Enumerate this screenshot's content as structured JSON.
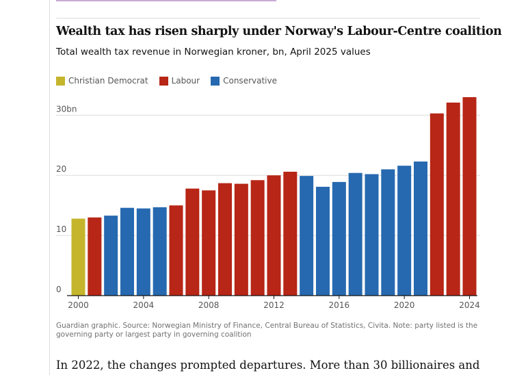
{
  "chart_data": {
    "type": "bar",
    "title": "Wealth tax has risen sharply under Norway's Labour-Centre coalition",
    "subtitle": "Total wealth tax revenue in Norwegian kroner, bn, April 2025 values",
    "legend": [
      {
        "name": "Christian Democrat",
        "color": "#c4b52c"
      },
      {
        "name": "Labour",
        "color": "#b72616"
      },
      {
        "name": "Conservative",
        "color": "#2669b0"
      }
    ],
    "legend_position": "top-left",
    "grid": true,
    "xlim": [
      2000,
      2024
    ],
    "ylim": [
      0,
      33
    ],
    "x_ticks": [
      2000,
      2004,
      2008,
      2012,
      2016,
      2020,
      2024
    ],
    "y_ticks": [
      {
        "value": 0,
        "label": "0"
      },
      {
        "value": 10,
        "label": "10"
      },
      {
        "value": 20,
        "label": "20"
      },
      {
        "value": 30,
        "label": "30bn"
      }
    ],
    "x": [
      2000,
      2001,
      2002,
      2003,
      2004,
      2005,
      2006,
      2007,
      2008,
      2009,
      2010,
      2011,
      2012,
      2013,
      2014,
      2015,
      2016,
      2017,
      2018,
      2019,
      2020,
      2021,
      2022,
      2023,
      2024
    ],
    "values": [
      12.8,
      13.0,
      13.3,
      14.6,
      14.5,
      14.7,
      15.0,
      17.8,
      17.5,
      18.7,
      18.6,
      19.2,
      20.0,
      20.6,
      19.9,
      18.1,
      18.9,
      20.4,
      20.2,
      21.0,
      21.6,
      22.3,
      30.3,
      32.1,
      33.0
    ],
    "party": [
      "Christian Democrat",
      "Labour",
      "Conservative",
      "Conservative",
      "Conservative",
      "Conservative",
      "Labour",
      "Labour",
      "Labour",
      "Labour",
      "Labour",
      "Labour",
      "Labour",
      "Labour",
      "Conservative",
      "Conservative",
      "Conservative",
      "Conservative",
      "Conservative",
      "Conservative",
      "Conservative",
      "Conservative",
      "Labour",
      "Labour",
      "Labour"
    ]
  },
  "source_note": "Guardian graphic. Source: Norwegian Ministry of Finance, Central Bureau of Statistics, Civita. Note: party listed is the governing party or largest party in governing coalition",
  "body_text": "In 2022, the changes prompted departures. More than 30 billionaires and"
}
